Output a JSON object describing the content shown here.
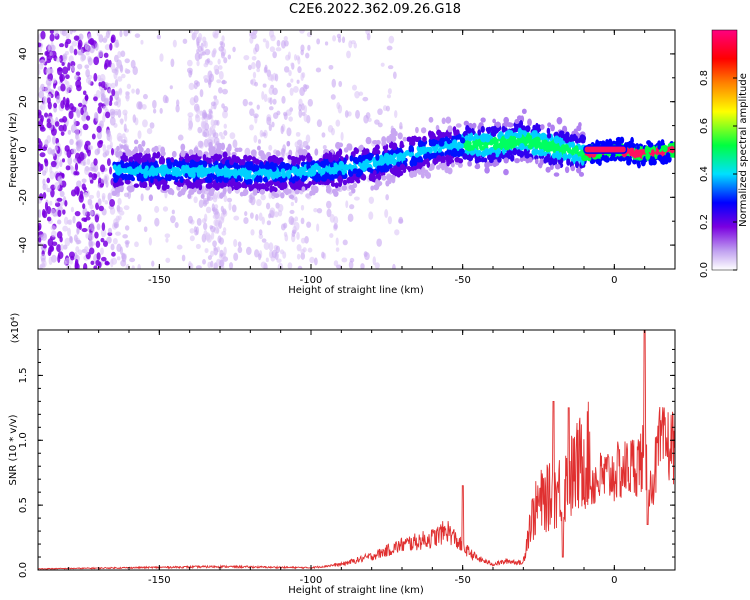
{
  "title": "C2E6.2022.362.09.26.G18",
  "colors": {
    "snr_line": "#e03030",
    "axis": "#000000"
  },
  "chart_data": [
    {
      "type": "heatmap",
      "name": "spectrogram",
      "xlabel": "Height of straight line (km)",
      "ylabel": "Frequency (Hz)",
      "xlim": [
        -190,
        20
      ],
      "ylim": [
        -50,
        50
      ],
      "xticks": [
        -150,
        -100,
        -50,
        0
      ],
      "yticks": [
        -40,
        -20,
        0,
        20,
        40
      ],
      "colorbar": {
        "label": "Normalized spectral amplitude",
        "range": [
          0.0,
          1.0
        ],
        "ticks": [
          0.0,
          0.2,
          0.4,
          0.6,
          0.8
        ],
        "colormap": [
          "#ffffff",
          "#7a00e0",
          "#0000ff",
          "#00e0ff",
          "#00ff40",
          "#ffff00",
          "#ff8000",
          "#ff0000",
          "#ff0080"
        ]
      },
      "ridge": {
        "x": [
          -160,
          -150,
          -140,
          -130,
          -120,
          -110,
          -100,
          -90,
          -80,
          -70,
          -60,
          -50,
          -40,
          -30,
          -20,
          -10,
          0,
          10,
          20
        ],
        "y": [
          -9,
          -9,
          -9,
          -9,
          -10,
          -10,
          -9,
          -8,
          -6,
          -3,
          0,
          2,
          2,
          4,
          1,
          -2,
          0,
          -2,
          0
        ]
      },
      "ridge_peak_start": -10
    },
    {
      "type": "line",
      "name": "snr",
      "xlabel": "Height of straight line (km)",
      "ylabel": "SNR (10 * v/v)",
      "multiplier_label": "(x10⁴)",
      "xlim": [
        -190,
        20
      ],
      "ylim": [
        0,
        1.85
      ],
      "xticks": [
        -150,
        -100,
        -50,
        0
      ],
      "yticks": [
        0.0,
        0.5,
        1.0,
        1.5
      ],
      "ytick_labels": [
        "0.0",
        "0.5",
        "1.0",
        "1.5"
      ],
      "envelope": {
        "x": [
          -190,
          -160,
          -130,
          -100,
          -90,
          -80,
          -70,
          -60,
          -55,
          -50,
          -45,
          -40,
          -35,
          -30,
          -28,
          -25,
          -20,
          -15,
          -10,
          -5,
          0,
          5,
          8,
          10,
          12,
          15,
          20
        ],
        "y": [
          0.01,
          0.02,
          0.03,
          0.02,
          0.05,
          0.12,
          0.22,
          0.28,
          0.35,
          0.2,
          0.1,
          0.05,
          0.08,
          0.06,
          0.3,
          0.45,
          0.5,
          0.6,
          0.75,
          0.8,
          0.85,
          0.9,
          0.95,
          1.0,
          0.7,
          1.1,
          1.1
        ]
      },
      "spikes": [
        {
          "x": 10,
          "y": 1.9
        },
        {
          "x": 11,
          "y": 0.35
        },
        {
          "x": -20,
          "y": 1.3
        },
        {
          "x": -15,
          "y": 1.25
        },
        {
          "x": -17,
          "y": 0.1
        },
        {
          "x": -50,
          "y": 0.65
        }
      ]
    }
  ]
}
